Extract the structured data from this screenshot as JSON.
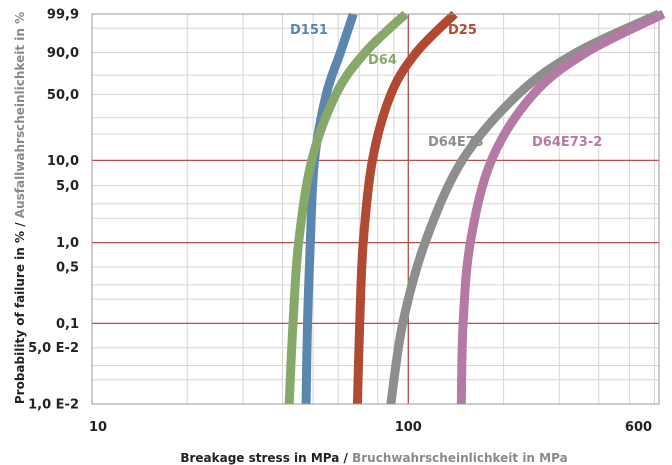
{
  "chart_data": {
    "type": "line",
    "x_scale": "log",
    "y_scale": "weibull",
    "xlim": [
      10,
      620
    ],
    "ylim": [
      0.01,
      99.9
    ],
    "grid": true,
    "x_ticks": [
      {
        "value": 10,
        "label": "10"
      },
      {
        "value": 100,
        "label": "100"
      },
      {
        "value": 600,
        "label": "600"
      }
    ],
    "y_ticks": [
      {
        "value": 99.9,
        "label": "99,9"
      },
      {
        "value": 90,
        "label": "90,0"
      },
      {
        "value": 50,
        "label": "50,0"
      },
      {
        "value": 10,
        "label": "10,0"
      },
      {
        "value": 5,
        "label": "5,0"
      },
      {
        "value": 1,
        "label": "1,0"
      },
      {
        "value": 0.5,
        "label": "0,5"
      },
      {
        "value": 0.1,
        "label": "0,1"
      },
      {
        "value": 0.05,
        "label": "5,0 E-2"
      },
      {
        "value": 0.01,
        "label": "1,0 E-2"
      }
    ],
    "highlight_y": [
      10,
      1,
      0.1
    ],
    "highlight_x": [
      100
    ],
    "xlabel": {
      "primary": "Breakage stress in MPa",
      "separator": " / ",
      "secondary": "Bruchwahrscheinlichkeit in MPa"
    },
    "ylabel": {
      "primary": "Probability of failure in %",
      "separator": " / ",
      "secondary": "Ausfallwahrscheinlichkeit in %"
    },
    "series": [
      {
        "name": "D151",
        "color": "#5b86b0",
        "points": [
          [
            47.5,
            0.01
          ],
          [
            48,
            0.1
          ],
          [
            49,
            1
          ],
          [
            50.5,
            10
          ],
          [
            55,
            50
          ],
          [
            61,
            90
          ],
          [
            67,
            99.9
          ]
        ]
      },
      {
        "name": "D64",
        "color": "#86a96a",
        "points": [
          [
            42,
            0.01
          ],
          [
            43.2,
            0.1
          ],
          [
            45,
            1
          ],
          [
            49.5,
            10
          ],
          [
            59,
            50
          ],
          [
            73,
            90
          ],
          [
            98,
            99.9
          ]
        ]
      },
      {
        "name": "D25",
        "color": "#b04a32",
        "points": [
          [
            69,
            0.01
          ],
          [
            70.2,
            0.1
          ],
          [
            72,
            1
          ],
          [
            77,
            10
          ],
          [
            88,
            50
          ],
          [
            106,
            90
          ],
          [
            140,
            99.9
          ]
        ]
      },
      {
        "name": "D64E73",
        "color": "#8e8e8e",
        "points": [
          [
            88,
            0.01
          ],
          [
            96,
            0.1
          ],
          [
            113,
            1
          ],
          [
            148,
            10
          ],
          [
            222,
            50
          ],
          [
            340,
            90
          ],
          [
            620,
            99.9
          ]
        ]
      },
      {
        "name": "D64E73-2",
        "color": "#b57aa4",
        "points": [
          [
            147,
            0.01
          ],
          [
            149,
            0.1
          ],
          [
            157,
            1
          ],
          [
            183,
            10
          ],
          [
            248,
            50
          ],
          [
            365,
            90
          ],
          [
            640,
            99.9
          ]
        ]
      }
    ]
  }
}
